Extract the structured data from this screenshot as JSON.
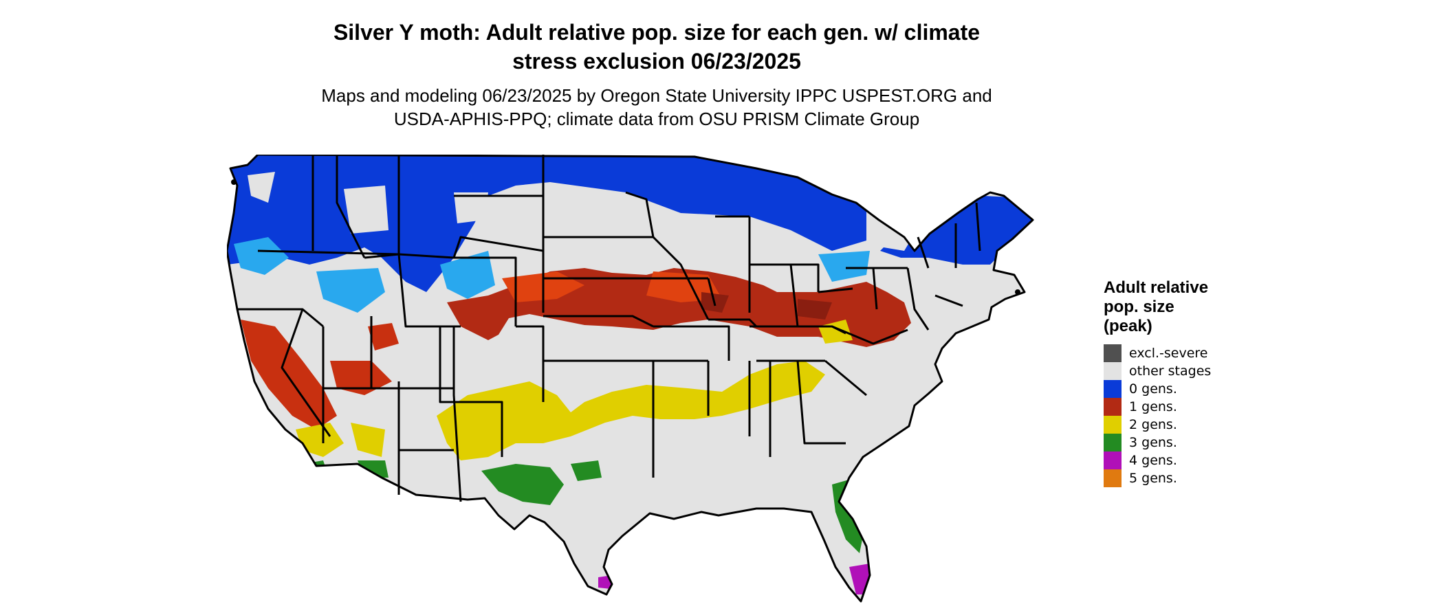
{
  "map": {
    "title_line1": "Silver Y moth: Adult relative pop. size for each gen. w/ climate",
    "title_line2": "stress exclusion 06/23/2025",
    "subtitle_line1": "Maps and modeling 06/23/2025 by Oregon State University IPPC USPEST.ORG and",
    "subtitle_line2": "USDA-APHIS-PPQ; climate data from OSU PRISM Climate Group",
    "region": "contiguous United States",
    "colors": {
      "background_land": "#e3e3e3",
      "border": "#000000",
      "zero_gens_light": "#29a8ee",
      "zero_gens_dark": "#0a3bd8"
    }
  },
  "legend": {
    "title": "Adult relative\npop. size\n(peak)",
    "items": [
      {
        "label": "excl.-severe",
        "color": "#505050"
      },
      {
        "label": "other stages",
        "color": "#e3e3e3"
      },
      {
        "label": "0 gens.",
        "color": "#0a3bd8"
      },
      {
        "label": "1 gens.",
        "color": "#b22a14"
      },
      {
        "label": "2 gens.",
        "color": "#e0cf00"
      },
      {
        "label": "3 gens.",
        "color": "#238b22"
      },
      {
        "label": "4 gens.",
        "color": "#b010b8"
      },
      {
        "label": "5 gens.",
        "color": "#e07a10"
      }
    ]
  }
}
